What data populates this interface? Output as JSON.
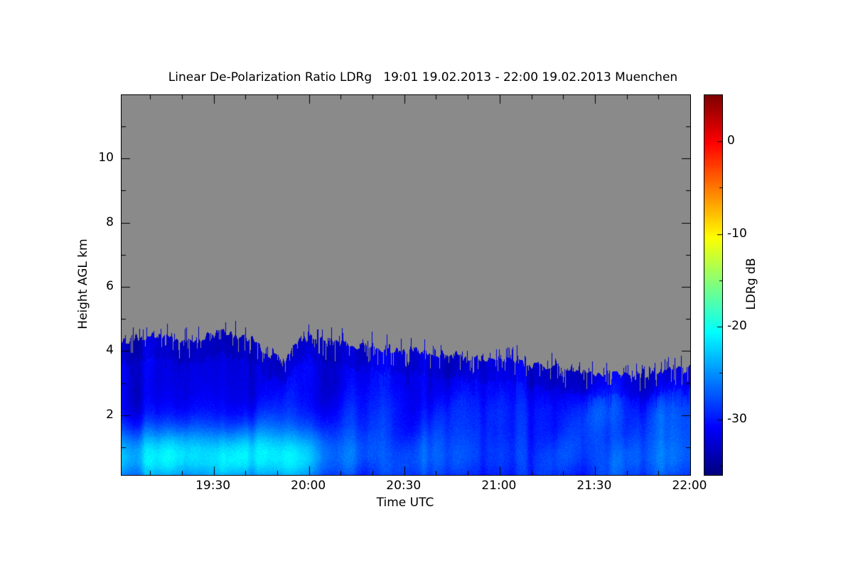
{
  "chart_data": {
    "type": "heatmap",
    "title": "Linear De-Polarization Ratio LDRg   19:01 19.02.2013 - 22:00 19.02.2013 Muenchen",
    "xlabel": "Time UTC",
    "ylabel": "Height AGL km",
    "x_range_utc": [
      "19:01",
      "22:00"
    ],
    "x_ticks": [
      "19:30",
      "20:00",
      "20:30",
      "21:00",
      "21:30",
      "22:00"
    ],
    "x_minor_step_min": 10,
    "y_range_km": [
      0.14,
      11.97
    ],
    "y_ticks": [
      2,
      4,
      6,
      8,
      10
    ],
    "y_minor_step_km": 1,
    "colorbar": {
      "label": "LDRg dB",
      "ticks": [
        0,
        -10,
        -20,
        -30
      ],
      "minor_ticks": [
        -5,
        -15,
        -25,
        -35
      ],
      "range_db": [
        -36,
        5
      ],
      "colormap": "jet"
    },
    "no_data_color": "#8a8a8a",
    "frame_color": "#000000",
    "base_value_db": -31.5,
    "low_band_center_km": 0.7,
    "low_band_sigma_km": 1.0,
    "low_band_gain_db": 11,
    "mid_band_center_km": 2.1,
    "mid_band_sigma_km": 0.7,
    "mid_band_gain_db": 5,
    "cloud_top_km": [
      4.25,
      4.45,
      4.5,
      4.35,
      4.3,
      4.45,
      4.55,
      4.5,
      4.35,
      3.9,
      3.65,
      4.35,
      4.45,
      4.3,
      4.2,
      4.15,
      4.1,
      4.05,
      4.0,
      3.95,
      3.9,
      3.85,
      3.8,
      3.75,
      3.7,
      3.6,
      3.55,
      3.5,
      3.45,
      3.35,
      3.3,
      3.28,
      3.32,
      3.3,
      3.38,
      3.45
    ],
    "low_band_intensity": [
      0.75,
      0.85,
      0.9,
      0.95,
      0.9,
      0.9,
      0.95,
      0.95,
      0.9,
      0.9,
      0.95,
      0.85,
      0.65,
      0.5,
      0.45,
      0.4,
      0.4,
      0.38,
      0.36,
      0.34,
      0.32,
      0.32,
      0.3,
      0.3,
      0.28,
      0.28,
      0.28,
      0.3,
      0.3,
      0.32,
      0.34,
      0.36,
      0.38,
      0.36,
      0.34,
      0.32
    ],
    "mid_band_intensity": [
      0,
      0,
      0,
      0,
      0,
      0.05,
      0.05,
      0.1,
      0.1,
      0.1,
      0.15,
      0.15,
      0.1,
      0.1,
      0.15,
      0.2,
      0.2,
      0.25,
      0.25,
      0.2,
      0.2,
      0.25,
      0.25,
      0.3,
      0.3,
      0.3,
      0.35,
      0.35,
      0.4,
      0.45,
      0.5,
      0.5,
      0.45,
      0.5,
      0.45,
      0.4
    ]
  }
}
